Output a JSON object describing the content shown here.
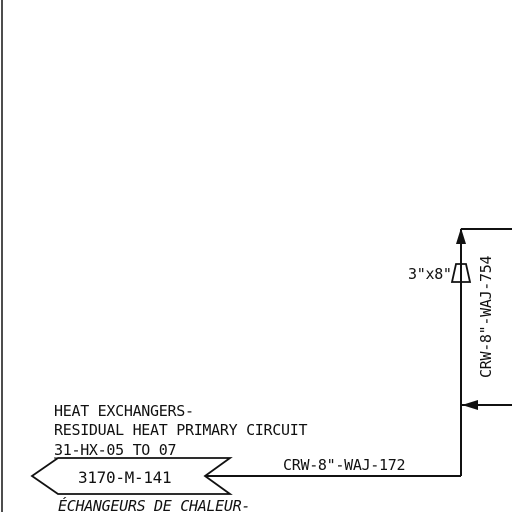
{
  "drawing": {
    "line_color": "#111111",
    "background": "#ffffff",
    "reducer_label": "3\"x8\"",
    "vertical_pipe_label": "CRW-8\"-WAJ-754",
    "horizontal_pipe_label": "CRW-8\"-WAJ-172",
    "destination": {
      "title_line1": "HEAT EXCHANGERS-",
      "title_line2": "RESIDUAL HEAT PRIMARY CIRCUIT",
      "equipment_range": "31-HX-05 TO 07",
      "drawing_ref": "3170-M-141",
      "french_title": "ÉCHANGEURS DE CHALEUR-"
    }
  }
}
